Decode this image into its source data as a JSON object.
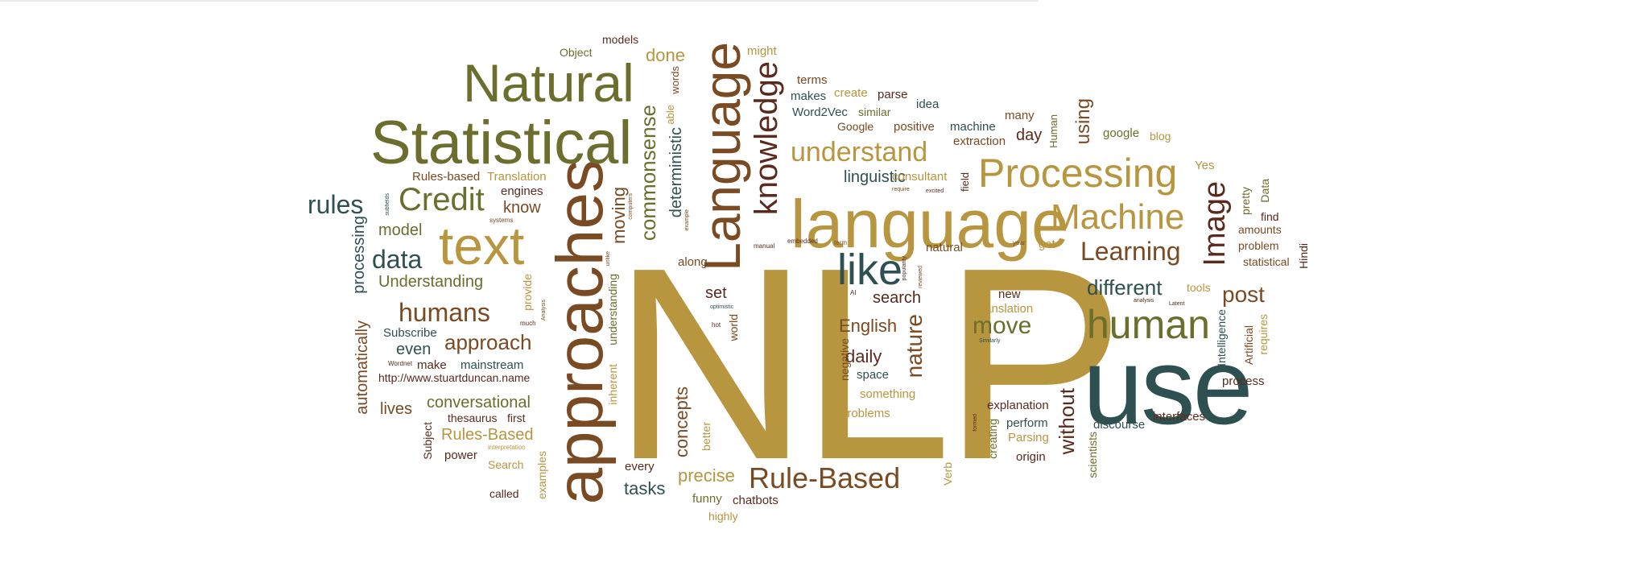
{
  "colors": {
    "gold": "#b8953f",
    "olive": "#6b6e2c",
    "teal": "#2e5050",
    "brown": "#7a4a22",
    "maroon": "#5a2a1e",
    "tan": "#c9a24a"
  },
  "words": {
    "nlp": "NLP",
    "use": "use",
    "language": "language",
    "Language": "Language",
    "approaches": "approaches",
    "Statistical": "Statistical",
    "Natural": "Natural",
    "text": "text",
    "Processing": "Processing",
    "Machine": "Machine",
    "human": "human",
    "knowledge": "knowledge",
    "Rule_Based": "Rule-Based",
    "Credit": "Credit",
    "like": "like",
    "understand": "understand",
    "Image": "Image",
    "Learning": "Learning",
    "humans": "humans",
    "data": "data",
    "rules": "rules",
    "approach": "approach",
    "commonsense": "commonsense",
    "nature": "nature",
    "different": "different",
    "move": "move",
    "post": "post",
    "without": "without",
    "using": "using",
    "conversational": "conversational",
    "Understanding": "Understanding",
    "processing": "processing",
    "automatically": "automatically",
    "moving": "moving",
    "deterministic": "deterministic",
    "concepts": "concepts",
    "precise": "precise",
    "tasks": "tasks",
    "English": "English",
    "search": "search",
    "daily": "daily",
    "lives": "lives",
    "even": "even",
    "model": "model",
    "know": "know",
    "Rules_Based": "Rules-Based",
    "Rules_based": "Rules-based",
    "Translation": "Translation",
    "engines": "engines",
    "done": "done",
    "models": "models",
    "Object": "Object",
    "might": "might",
    "terms": "terms",
    "makes": "makes",
    "Word2Vec": "Word2Vec",
    "create": "create",
    "parse": "parse",
    "similar": "similar",
    "Google": "Google",
    "idea": "idea",
    "positive": "positive",
    "machine": "machine",
    "many": "many",
    "extraction": "extraction",
    "day": "day",
    "Human": "Human",
    "google": "google",
    "blog": "blog",
    "linguistic": "linguistic",
    "consultant": "consultant",
    "field": "field",
    "Yes": "Yes",
    "pretty": "pretty",
    "Data": "Data",
    "find": "find",
    "amounts": "amounts",
    "problem": "problem",
    "statistical": "statistical",
    "Hindi": "Hindi",
    "natural": "natural",
    "get": "get",
    "tools": "tools",
    "new": "new",
    "translation": "translation",
    "Intelligence": "Intelligence",
    "Artificial": "Artificial",
    "requires": "requires",
    "process": "process",
    "interfaces": "interfaces",
    "discourse": "discourse",
    "explanation": "explanation",
    "perform": "perform",
    "Parsing": "Parsing",
    "origin": "origin",
    "creating": "creating",
    "scientists": "scientists",
    "Verb": "Verb",
    "something": "something",
    "problems": "problems",
    "space": "space",
    "negative": "negative",
    "every": "every",
    "funny": "funny",
    "chatbots": "chatbots",
    "highly": "highly",
    "better": "better",
    "examples": "examples",
    "called": "called",
    "Search": "Search",
    "power": "power",
    "Subject": "Subject",
    "thesaurus": "thesaurus",
    "first": "first",
    "url": "http://www.stuartduncan.name",
    "make": "make",
    "mainstream": "mainstream",
    "Subscribe": "Subscribe",
    "inherent": "inherent",
    "understanding": "understanding",
    "provide": "provide",
    "along": "along",
    "set": "set",
    "world": "world",
    "able": "able",
    "words": "words",
    "interpretation": "interpretation",
    "Wordnet": "Wordnet",
    "much": "much",
    "Analysis": "Analysis",
    "systems": "systems",
    "subfields": "subfields",
    "computers": "computers",
    "example": "example",
    "unlike": "unlike",
    "manual": "manual",
    "embedded": "embedded",
    "term": "term",
    "AI": "AI",
    "popularity": "popularity",
    "reviewed": "reviewed",
    "hot": "hot",
    "optimistic": "optimistic",
    "require": "require",
    "excited": "excited",
    "year": "year",
    "analysis": "analysis",
    "Latent": "Latent",
    "Similarly": "Similarly",
    "formed": "formed"
  }
}
